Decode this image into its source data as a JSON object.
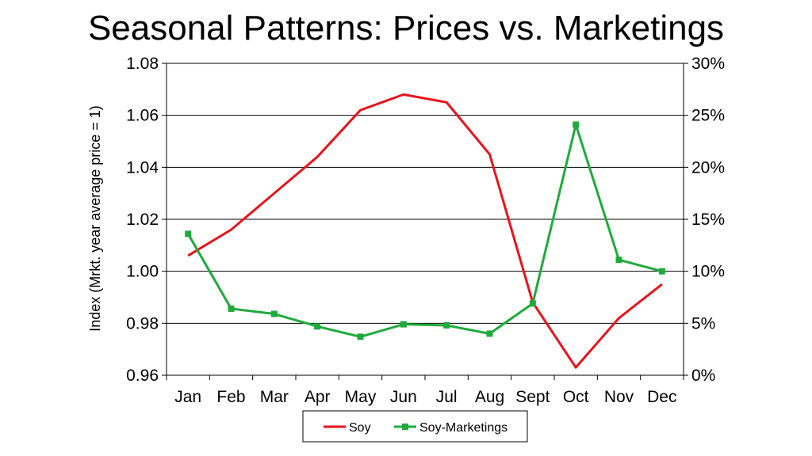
{
  "chart_data": {
    "type": "line",
    "title": "Seasonal Patterns: Prices vs. Marketings",
    "xlabel": "",
    "ylabel": "Index (Mrkt. year average price = 1)",
    "y2label": "",
    "categories": [
      "Jan",
      "Feb",
      "Mar",
      "Apr",
      "May",
      "Jun",
      "Jul",
      "Aug",
      "Sept",
      "Oct",
      "Nov",
      "Dec"
    ],
    "ylim": [
      0.96,
      1.08
    ],
    "yticks": [
      "0.96",
      "0.98",
      "1.00",
      "1.02",
      "1.04",
      "1.06",
      "1.08"
    ],
    "y2lim": [
      0,
      30
    ],
    "y2ticks": [
      "0%",
      "5%",
      "10%",
      "15%",
      "20%",
      "25%",
      "30%"
    ],
    "grid": "horizontal",
    "legend_position": "bottom",
    "series": [
      {
        "name": "Soy",
        "axis": "left",
        "color": "#e8141b",
        "marker": "none",
        "values": [
          1.006,
          1.016,
          1.03,
          1.044,
          1.062,
          1.068,
          1.065,
          1.045,
          0.988,
          0.963,
          0.982,
          0.995
        ]
      },
      {
        "name": "Soy-Marketings",
        "axis": "right",
        "color": "#1faa3c",
        "marker": "square",
        "values": [
          13.6,
          6.4,
          5.9,
          4.7,
          3.7,
          4.9,
          4.8,
          4.0,
          6.9,
          24.1,
          11.1,
          10.0
        ]
      }
    ]
  }
}
